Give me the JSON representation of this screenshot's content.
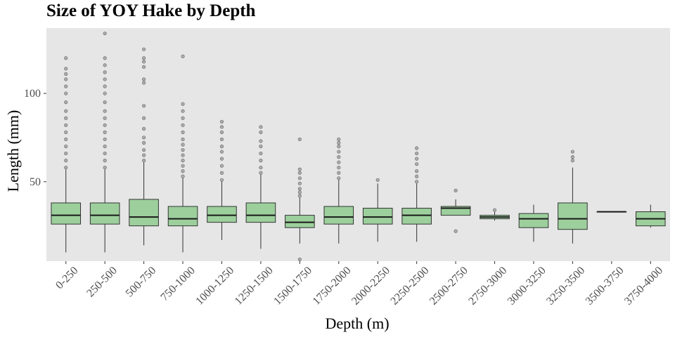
{
  "chart_data": {
    "type": "box",
    "title": "Size of YOY Hake by Depth",
    "xlabel": "Depth (m)",
    "ylabel": "Length (mm)",
    "ylim": [
      5,
      137
    ],
    "yticks": [
      50,
      100
    ],
    "grid": false,
    "fill_color": "#9ccf9c",
    "panel_color": "#e6e6e6",
    "categories": [
      "0-250",
      "250-500",
      "500-750",
      "750-1000",
      "1000-1250",
      "1250-1500",
      "1500-1750",
      "1750-2000",
      "2000-2250",
      "2250-2500",
      "2500-2750",
      "2750-3000",
      "3000-3250",
      "3250-3500",
      "3500-3750",
      "3750-4000"
    ],
    "boxes": [
      {
        "category": "0-250",
        "min": 10,
        "q1": 26,
        "median": 31,
        "q3": 38,
        "max": 57,
        "outliers": [
          58,
          62,
          66,
          70,
          74,
          78,
          82,
          86,
          90,
          95,
          100,
          104,
          108,
          111,
          114,
          120
        ]
      },
      {
        "category": "250-500",
        "min": 10,
        "q1": 26,
        "median": 31,
        "q3": 38,
        "max": 57,
        "outliers": [
          58,
          62,
          66,
          70,
          74,
          78,
          82,
          86,
          90,
          95,
          100,
          104,
          108,
          112,
          116,
          120,
          134
        ]
      },
      {
        "category": "500-750",
        "min": 14,
        "q1": 25,
        "median": 30,
        "q3": 40,
        "max": 61,
        "outliers": [
          62,
          65,
          68,
          72,
          75,
          80,
          86,
          93,
          106,
          108,
          115,
          118,
          120,
          125
        ]
      },
      {
        "category": "750-1000",
        "min": 10,
        "q1": 25,
        "median": 29,
        "q3": 36,
        "max": 52,
        "outliers": [
          53,
          56,
          59,
          62,
          65,
          68,
          71,
          74,
          78,
          82,
          86,
          90,
          94,
          121
        ]
      },
      {
        "category": "1000-1250",
        "min": 17,
        "q1": 27,
        "median": 31,
        "q3": 36,
        "max": 50,
        "outliers": [
          51,
          55,
          59,
          63,
          67,
          70,
          74,
          78,
          81,
          84
        ]
      },
      {
        "category": "1250-1500",
        "min": 12,
        "q1": 27,
        "median": 31,
        "q3": 38,
        "max": 54,
        "outliers": [
          55,
          58,
          62,
          66,
          70,
          73,
          78,
          81
        ]
      },
      {
        "category": "1500-1750",
        "min": 15,
        "q1": 24,
        "median": 27,
        "q3": 31,
        "max": 41,
        "outliers": [
          42,
          44,
          46,
          49,
          52,
          55,
          57,
          74,
          6
        ]
      },
      {
        "category": "1750-2000",
        "min": 15,
        "q1": 26,
        "median": 30,
        "q3": 36,
        "max": 51,
        "outliers": [
          52,
          55,
          58,
          61,
          64,
          67,
          70,
          72,
          74
        ]
      },
      {
        "category": "2000-2250",
        "min": 16,
        "q1": 26,
        "median": 30,
        "q3": 35,
        "max": 49,
        "outliers": [
          51
        ]
      },
      {
        "category": "2250-2500",
        "min": 16,
        "q1": 26,
        "median": 31,
        "q3": 35,
        "max": 49,
        "outliers": [
          50,
          53,
          56,
          60,
          63,
          66,
          69
        ]
      },
      {
        "category": "2500-2750",
        "min": 31,
        "q1": 31,
        "median": 35,
        "q3": 36,
        "max": 40,
        "outliers": [
          22,
          45
        ]
      },
      {
        "category": "2750-3000",
        "min": 28,
        "q1": 29,
        "median": 30,
        "q3": 31,
        "max": 33,
        "outliers": [
          34
        ]
      },
      {
        "category": "3000-3250",
        "min": 16,
        "q1": 24,
        "median": 29,
        "q3": 32,
        "max": 37,
        "outliers": []
      },
      {
        "category": "3250-3500",
        "min": 15,
        "q1": 23,
        "median": 29,
        "q3": 38,
        "max": 58,
        "outliers": [
          62,
          64,
          67
        ]
      },
      {
        "category": "3500-3750",
        "min": 33,
        "q1": 33,
        "median": 33,
        "q3": 33,
        "max": 33,
        "outliers": []
      },
      {
        "category": "3750-4000",
        "min": 24,
        "q1": 25,
        "median": 29,
        "q3": 33,
        "max": 37,
        "outliers": []
      }
    ]
  }
}
